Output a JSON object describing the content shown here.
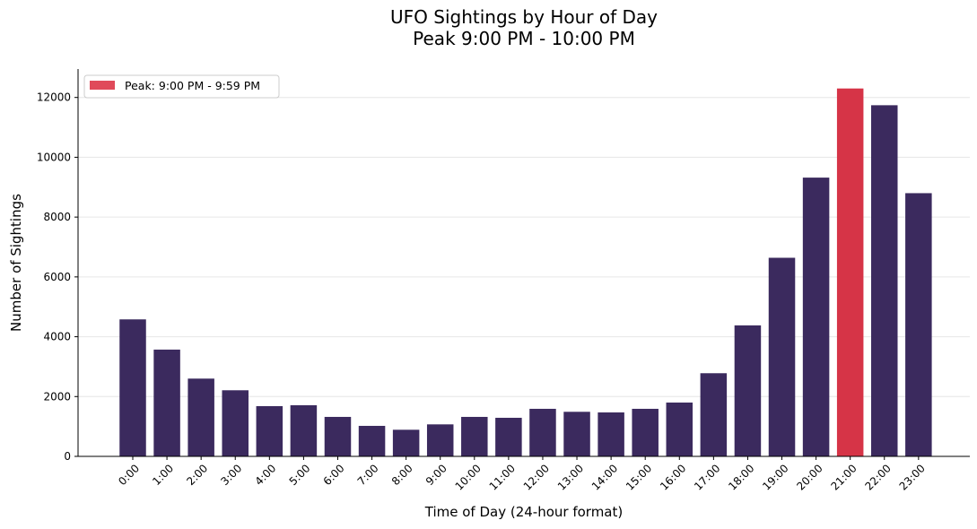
{
  "chart_data": {
    "type": "bar",
    "title": "UFO Sightings by Hour of Day",
    "subtitle": "Peak 9:00 PM - 10:00 PM",
    "xlabel": "Time of Day (24-hour format)",
    "ylabel": "Number of Sightings",
    "categories": [
      "0:00",
      "1:00",
      "2:00",
      "3:00",
      "4:00",
      "5:00",
      "6:00",
      "7:00",
      "8:00",
      "9:00",
      "10:00",
      "11:00",
      "12:00",
      "13:00",
      "14:00",
      "15:00",
      "16:00",
      "17:00",
      "18:00",
      "19:00",
      "20:00",
      "21:00",
      "22:00",
      "23:00"
    ],
    "values": [
      4580,
      3570,
      2600,
      2210,
      1680,
      1710,
      1320,
      1020,
      890,
      1070,
      1320,
      1290,
      1590,
      1490,
      1470,
      1590,
      1800,
      2780,
      4380,
      6640,
      9320,
      12300,
      11740,
      8800
    ],
    "ylim": [
      0,
      12950
    ],
    "yticks": [
      0,
      2000,
      4000,
      6000,
      8000,
      10000,
      12000
    ],
    "grid": "y",
    "legend": {
      "label": "Peak: 9:00 PM - 9:59 PM",
      "placement": "top-left"
    },
    "peak_index": 21,
    "colors": {
      "bar": "#3b2a5e",
      "peak": "#d63447",
      "legend_patch": "#e04a5a",
      "grid": "#e6e6e6"
    }
  }
}
